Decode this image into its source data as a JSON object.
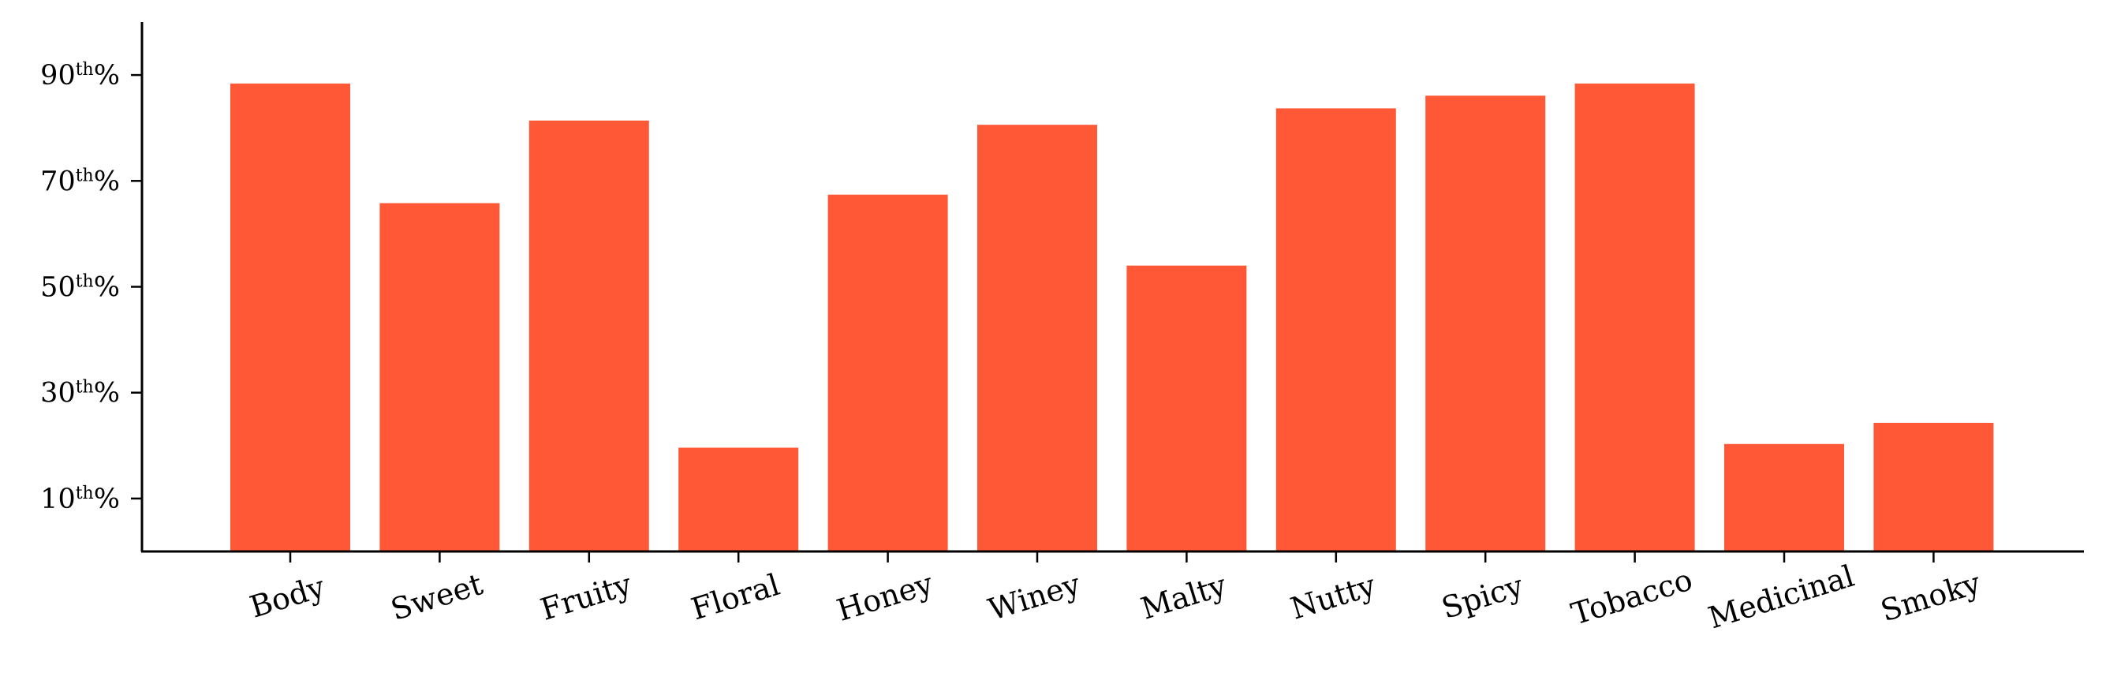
{
  "chart_data": {
    "type": "bar",
    "title": "",
    "xlabel": "",
    "ylabel": "",
    "categories": [
      "Body",
      "Sweet",
      "Fruity",
      "Floral",
      "Honey",
      "Winey",
      "Malty",
      "Nutty",
      "Spicy",
      "Tobacco",
      "Medicinal",
      "Smoky"
    ],
    "values": [
      88.4,
      65.8,
      81.4,
      19.6,
      67.4,
      80.6,
      54.0,
      83.7,
      86.1,
      88.4,
      20.3,
      24.3
    ],
    "ylim": [
      0,
      100
    ],
    "yticks": [
      {
        "value": 10,
        "num": "10",
        "sup": "th",
        "suffix": "%"
      },
      {
        "value": 30,
        "num": "30",
        "sup": "th",
        "suffix": "%"
      },
      {
        "value": 50,
        "num": "50",
        "sup": "th",
        "suffix": "%"
      },
      {
        "value": 70,
        "num": "70",
        "sup": "th",
        "suffix": "%"
      },
      {
        "value": 90,
        "num": "90",
        "sup": "th",
        "suffix": "%"
      }
    ],
    "bar_color": "#ff5837",
    "grid": false,
    "legend": "none"
  }
}
